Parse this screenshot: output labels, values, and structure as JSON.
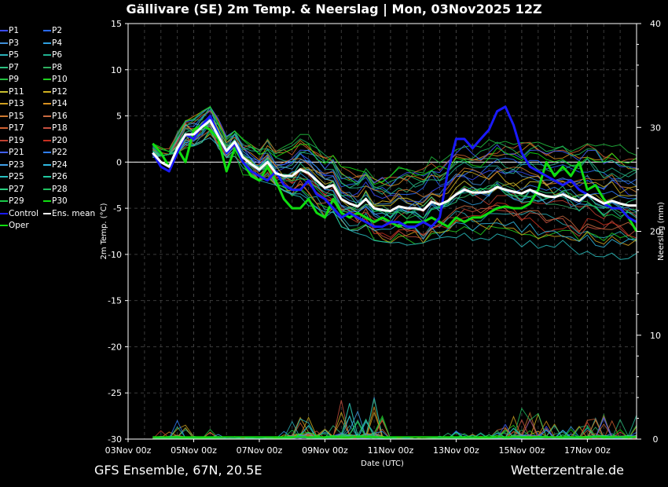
{
  "title": "Gällivare  (SE)  2m Temp. & Neerslag | Mon, 03Nov2025 12Z",
  "footer_left": "GFS Ensemble, 67N, 20.5E",
  "footer_right": "Wetterzentrale.de",
  "legend": [
    {
      "label": "P1",
      "color": "#3a4bff"
    },
    {
      "label": "P2",
      "color": "#2a6bff"
    },
    {
      "label": "P3",
      "color": "#3f8fd8"
    },
    {
      "label": "P4",
      "color": "#2fa0e0"
    },
    {
      "label": "P5",
      "color": "#2ab0b8"
    },
    {
      "label": "P6",
      "color": "#20b090"
    },
    {
      "label": "P7",
      "color": "#2dc080"
    },
    {
      "label": "P8",
      "color": "#30b060"
    },
    {
      "label": "P9",
      "color": "#22c040"
    },
    {
      "label": "P10",
      "color": "#20d020"
    },
    {
      "label": "P11",
      "color": "#c8c030"
    },
    {
      "label": "P12",
      "color": "#d0b020"
    },
    {
      "label": "P13",
      "color": "#d0a020"
    },
    {
      "label": "P14",
      "color": "#d89020"
    },
    {
      "label": "P15",
      "color": "#d07a30"
    },
    {
      "label": "P16",
      "color": "#c86a40"
    },
    {
      "label": "P17",
      "color": "#d06030"
    },
    {
      "label": "P18",
      "color": "#c85040"
    },
    {
      "label": "P19",
      "color": "#c04030"
    },
    {
      "label": "P20",
      "color": "#c83020"
    },
    {
      "label": "P21",
      "color": "#4060ff"
    },
    {
      "label": "P22",
      "color": "#3080ff"
    },
    {
      "label": "P23",
      "color": "#40a0e8"
    },
    {
      "label": "P24",
      "color": "#30b8e0"
    },
    {
      "label": "P25",
      "color": "#28c0c0"
    },
    {
      "label": "P26",
      "color": "#20c8a0"
    },
    {
      "label": "P27",
      "color": "#28d080"
    },
    {
      "label": "P28",
      "color": "#20c060"
    },
    {
      "label": "P29",
      "color": "#18c848"
    },
    {
      "label": "P30",
      "color": "#10e010"
    },
    {
      "label": "Control",
      "color": "#1a1aff"
    },
    {
      "label": "Ens. mean",
      "color": "#ffffff"
    },
    {
      "label": "Oper",
      "color": "#10dd10"
    }
  ],
  "chart_data": {
    "type": "line",
    "title": "Gällivare  (SE)  2m Temp. & Neerslag | Mon, 03Nov2025 12Z",
    "xlabel": "Date (UTC)",
    "ylabel": "2m Temp. (°C)",
    "y2label": "Neerslag (mm)",
    "x_ticks": [
      "03Nov 00z",
      "05Nov 00z",
      "07Nov 00z",
      "09Nov 00z",
      "11Nov 00z",
      "13Nov 00z",
      "15Nov 00z",
      "17Nov 00z"
    ],
    "ylim": [
      -30,
      15
    ],
    "y_ticks": [
      15,
      10,
      5,
      0,
      -5,
      -10,
      -15,
      -20,
      -25,
      -30
    ],
    "y2lim": [
      0,
      40
    ],
    "y2_ticks": [
      40,
      30,
      20,
      10,
      0
    ],
    "grid": true,
    "x_days_range": [
      0,
      15.5
    ],
    "series": [
      {
        "name": "Control",
        "color": "#1a1aff",
        "axis": "temp",
        "x": [
          0.75,
          1.0,
          1.25,
          1.5,
          1.75,
          2.0,
          2.25,
          2.5,
          2.75,
          3.0,
          3.25,
          3.5,
          3.75,
          4.0,
          4.25,
          4.5,
          4.75,
          5.0,
          5.25,
          5.5,
          5.75,
          6.0,
          6.25,
          6.5,
          6.75,
          7.0,
          7.25,
          7.5,
          7.75,
          8.0,
          8.25,
          8.5,
          8.75,
          9.0,
          9.25,
          9.5,
          9.75,
          10.0,
          10.25,
          10.5,
          10.75,
          11.0,
          11.25,
          11.5,
          11.75,
          12.0,
          12.25,
          12.5,
          12.75,
          13.0,
          13.25,
          13.5,
          13.75,
          14.0,
          14.25,
          14.5,
          14.75,
          15.0,
          15.25,
          15.5
        ],
        "y": [
          1.0,
          -0.5,
          -1.0,
          1.0,
          3.0,
          2.5,
          4.0,
          5.0,
          3.0,
          1.0,
          2.0,
          0.0,
          -1.0,
          -1.5,
          -2.0,
          -1.0,
          -2.5,
          -3.0,
          -3.0,
          -2.0,
          -3.5,
          -4.0,
          -5.0,
          -6.0,
          -5.5,
          -6.0,
          -6.5,
          -7.0,
          -7.0,
          -6.5,
          -6.5,
          -7.0,
          -7.0,
          -6.5,
          -7.0,
          -6.0,
          -1.0,
          2.5,
          2.5,
          1.5,
          2.5,
          3.5,
          5.5,
          6.0,
          4.0,
          1.0,
          -0.5,
          -1.0,
          -1.5,
          -2.0,
          -2.5,
          -2.0,
          -3.0,
          -3.5,
          -4.0,
          -4.5,
          -5.0,
          -5.0,
          -6.0,
          -6.5
        ]
      },
      {
        "name": "Ens. mean",
        "color": "#ffffff",
        "axis": "temp",
        "x": [
          0.75,
          1.0,
          1.25,
          1.5,
          1.75,
          2.0,
          2.25,
          2.5,
          2.75,
          3.0,
          3.25,
          3.5,
          3.75,
          4.0,
          4.25,
          4.5,
          4.75,
          5.0,
          5.25,
          5.5,
          5.75,
          6.0,
          6.25,
          6.5,
          6.75,
          7.0,
          7.25,
          7.5,
          7.75,
          8.0,
          8.25,
          8.5,
          8.75,
          9.0,
          9.25,
          9.5,
          9.75,
          10.0,
          10.25,
          10.5,
          10.75,
          11.0,
          11.25,
          11.5,
          11.75,
          12.0,
          12.25,
          12.5,
          12.75,
          13.0,
          13.25,
          13.5,
          13.75,
          14.0,
          14.25,
          14.5,
          14.75,
          15.0,
          15.25,
          15.5
        ],
        "y": [
          1.0,
          0.0,
          -0.5,
          1.5,
          3.0,
          3.0,
          3.8,
          4.5,
          2.8,
          1.2,
          2.2,
          0.5,
          -0.2,
          -0.8,
          0.0,
          -1.2,
          -1.5,
          -1.5,
          -0.8,
          -1.2,
          -2.0,
          -2.8,
          -2.5,
          -4.0,
          -4.5,
          -4.8,
          -4.0,
          -5.0,
          -5.2,
          -5.3,
          -4.8,
          -5.0,
          -5.0,
          -5.2,
          -4.3,
          -4.6,
          -4.2,
          -3.5,
          -3.0,
          -3.3,
          -3.3,
          -3.2,
          -2.7,
          -3.0,
          -3.2,
          -3.4,
          -3.0,
          -3.4,
          -3.7,
          -3.8,
          -3.5,
          -3.9,
          -4.2,
          -3.5,
          -4.0,
          -4.5,
          -4.2,
          -4.5,
          -4.7,
          -4.7
        ]
      },
      {
        "name": "Oper",
        "color": "#10dd10",
        "axis": "temp",
        "x": [
          0.75,
          1.0,
          1.25,
          1.5,
          1.75,
          2.0,
          2.25,
          2.5,
          2.75,
          3.0,
          3.25,
          3.5,
          3.75,
          4.0,
          4.25,
          4.5,
          4.75,
          5.0,
          5.25,
          5.5,
          5.75,
          6.0,
          6.25,
          6.5,
          6.75,
          7.0,
          7.25,
          7.5,
          7.75,
          8.0,
          8.25,
          8.5,
          8.75,
          9.0,
          9.25,
          9.5,
          9.75,
          10.0,
          10.25,
          10.5,
          10.75,
          11.0,
          11.25,
          11.5,
          11.75,
          12.0,
          12.25,
          12.5,
          12.75,
          13.0,
          13.25,
          13.5,
          13.75,
          14.0,
          14.25,
          14.5,
          14.75,
          15.0,
          15.25,
          15.5
        ],
        "y": [
          2.0,
          1.0,
          -0.5,
          1.5,
          0.0,
          3.5,
          4.0,
          3.5,
          2.5,
          -1.0,
          1.5,
          0.0,
          -1.5,
          -2.0,
          -0.5,
          -2.0,
          -4.0,
          -5.0,
          -5.0,
          -4.0,
          -5.5,
          -6.0,
          -4.0,
          -5.5,
          -6.0,
          -5.5,
          -6.0,
          -6.5,
          -6.0,
          -6.5,
          -7.0,
          -6.5,
          -6.5,
          -6.5,
          -6.0,
          -6.5,
          -7.0,
          -6.0,
          -6.5,
          -6.0,
          -6.0,
          -5.5,
          -5.0,
          -4.8,
          -5.0,
          -5.0,
          -4.5,
          -3.0,
          0.0,
          -1.5,
          -0.5,
          -1.5,
          0.0,
          -3.0,
          -2.5,
          -4.0,
          -5.0,
          -5.0,
          -6.0,
          -7.5
        ]
      },
      {
        "name": "P1-P30 (spread)",
        "color": "#808080",
        "axis": "temp",
        "x": [
          0.75,
          1.5,
          2.5,
          3.5,
          4.5,
          5.5,
          6.5,
          7.5,
          8.5,
          9.5,
          10.5,
          11.5,
          12.5,
          13.5,
          14.5,
          15.5
        ],
        "low": [
          0.5,
          1.0,
          2.5,
          -1.5,
          -2.5,
          -5.0,
          -7.0,
          -8.5,
          -9.0,
          -8.5,
          -8.5,
          -9.5,
          -10.5,
          -11.0,
          -11.5,
          -11.5
        ],
        "high": [
          2.0,
          4.0,
          6.0,
          2.5,
          3.0,
          3.0,
          1.0,
          0.0,
          1.0,
          2.5,
          3.0,
          2.5,
          3.0,
          3.0,
          2.5,
          1.5
        ]
      },
      {
        "name": "Neerslag (members max)",
        "color": "#1a7fd0",
        "axis": "precip",
        "x": [
          0.75,
          1.5,
          2.0,
          2.5,
          3.0,
          4.0,
          4.5,
          5.0,
          5.5,
          6.0,
          6.5,
          7.0,
          7.5,
          8.0,
          8.5,
          9.0,
          9.5,
          10.0,
          10.5,
          11.0,
          11.5,
          12.0,
          12.5,
          13.0,
          13.5,
          14.0,
          14.5,
          15.0,
          15.5
        ],
        "y": [
          0.2,
          2.5,
          0.5,
          1.0,
          0.3,
          0.1,
          0.3,
          2.5,
          4.5,
          1.0,
          4.0,
          3.0,
          4.2,
          0.3,
          0.2,
          0.3,
          0.5,
          0.8,
          0.5,
          0.8,
          1.5,
          3.0,
          2.5,
          1.5,
          1.5,
          2.0,
          2.5,
          2.0,
          2.8
        ]
      }
    ]
  }
}
